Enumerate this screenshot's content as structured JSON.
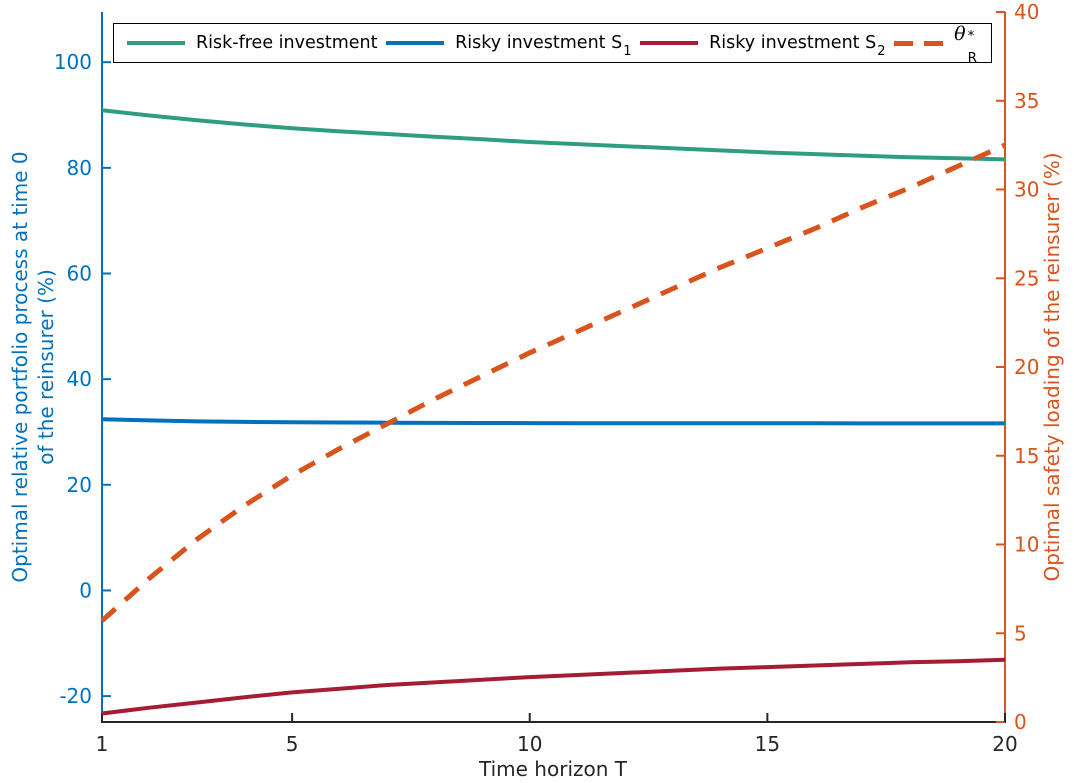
{
  "figure": {
    "background": "#ffffff"
  },
  "chart_data": {
    "type": "line",
    "title": "",
    "xlabel": "Time horizon T",
    "x_range": [
      1,
      20
    ],
    "x_ticks": [
      1,
      5,
      10,
      15,
      20
    ],
    "x": [
      1,
      2,
      3,
      4,
      5,
      6,
      7,
      8,
      9,
      10,
      11,
      12,
      13,
      14,
      15,
      16,
      17,
      18,
      19,
      20
    ],
    "grid": false,
    "left_axis": {
      "label_line1": "Optimal relative portfolio process at time 0",
      "label_line2": "of the reinsurer (%)",
      "color": "#0072bd",
      "ticks": [
        -20,
        0,
        20,
        40,
        60,
        80,
        100
      ],
      "range": [
        -24.9,
        109.5
      ]
    },
    "right_axis": {
      "label": "Optimal safety loading of the reinsurer (%)",
      "color": "#d9541d",
      "ticks": [
        0,
        5,
        10,
        15,
        20,
        25,
        30,
        35,
        40
      ],
      "range": [
        0,
        40
      ]
    },
    "x_axis_color": "#262626",
    "series": [
      {
        "name": "Risk-free investment",
        "axis": "left",
        "color": "#2f9e80",
        "style": "solid",
        "values": [
          90.9,
          89.9,
          89.0,
          88.2,
          87.5,
          86.9,
          86.4,
          85.9,
          85.4,
          84.9,
          84.5,
          84.1,
          83.7,
          83.3,
          82.9,
          82.6,
          82.3,
          82.0,
          81.8,
          81.6
        ]
      },
      {
        "name": "Risky investment S1",
        "axis": "left",
        "color": "#0072bd",
        "style": "solid",
        "values": [
          32.4,
          32.2,
          32.0,
          31.9,
          31.85,
          31.8,
          31.75,
          31.72,
          31.7,
          31.68,
          31.67,
          31.66,
          31.65,
          31.65,
          31.64,
          31.64,
          31.63,
          31.63,
          31.62,
          31.62
        ]
      },
      {
        "name": "Risky investment S2",
        "axis": "left",
        "color": "#a41d35",
        "style": "solid",
        "values": [
          -23.3,
          -22.2,
          -21.2,
          -20.2,
          -19.3,
          -18.6,
          -17.9,
          -17.4,
          -16.9,
          -16.4,
          -16.0,
          -15.6,
          -15.2,
          -14.8,
          -14.5,
          -14.2,
          -13.9,
          -13.6,
          -13.4,
          -13.1
        ]
      },
      {
        "name": "theta_R_star",
        "axis": "right",
        "color": "#d9541d",
        "style": "dashed",
        "values": [
          5.7,
          8.1,
          10.3,
          12.2,
          13.9,
          15.4,
          16.8,
          18.2,
          19.5,
          20.8,
          22.0,
          23.2,
          24.4,
          25.6,
          26.7,
          27.8,
          29.0,
          30.1,
          31.3,
          32.5
        ]
      }
    ],
    "legend": {
      "position": "top",
      "items": [
        {
          "label": "Risk-free investment",
          "series": 0
        },
        {
          "label": "Risky investment S",
          "sub": "1",
          "series": 1
        },
        {
          "label": "Risky investment S",
          "sub": "2",
          "series": 2
        },
        {
          "label": "θ",
          "sup": "*",
          "sub": "R",
          "italic": true,
          "series": 3
        }
      ]
    }
  }
}
